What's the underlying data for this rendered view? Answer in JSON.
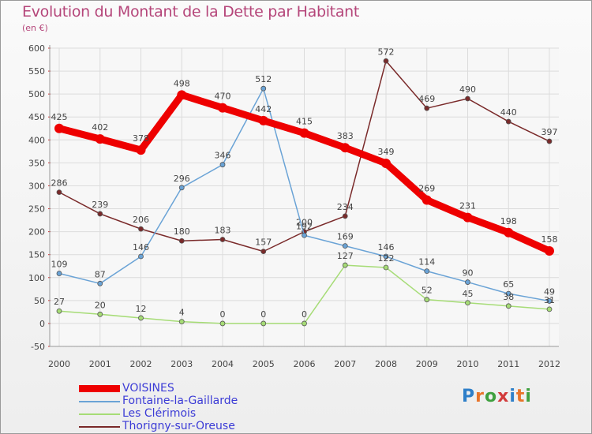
{
  "header": {
    "title": "Evolution du Montant de la Dette par Habitant",
    "subtitle": "(en €)"
  },
  "logo": {
    "text": "Proxiti"
  },
  "chart_data": {
    "type": "line",
    "title": "Evolution du Montant de la Dette par Habitant",
    "ylabel": "(en €)",
    "ylim": [
      -50,
      600
    ],
    "yticks": [
      -50,
      0,
      50,
      100,
      150,
      200,
      250,
      300,
      350,
      400,
      450,
      500,
      550,
      600
    ],
    "grid": true,
    "legend_position": "bottom-left",
    "x": [
      "2000",
      "2001",
      "2002",
      "2003",
      "2004",
      "2005",
      "2006",
      "2007",
      "2008",
      "2009",
      "2010",
      "2011",
      "2012"
    ],
    "series": [
      {
        "name": "VOISINES",
        "color": "#ee0000",
        "values": [
          425,
          402,
          378,
          498,
          470,
          442,
          415,
          383,
          349,
          269,
          231,
          198,
          158
        ]
      },
      {
        "name": "Fontaine-la-Gaillarde",
        "color": "#6aa3d6",
        "values": [
          109,
          87,
          146,
          296,
          346,
          512,
          192,
          169,
          146,
          114,
          90,
          65,
          49
        ]
      },
      {
        "name": "Les Clérimois",
        "color": "#a6dc76",
        "values": [
          27,
          20,
          12,
          4,
          0,
          0,
          0,
          127,
          122,
          52,
          45,
          38,
          31
        ]
      },
      {
        "name": "Thorigny-sur-Oreuse",
        "color": "#7a2a2a",
        "values": [
          286,
          239,
          206,
          180,
          183,
          157,
          200,
          234,
          572,
          469,
          490,
          440,
          397
        ]
      }
    ]
  }
}
